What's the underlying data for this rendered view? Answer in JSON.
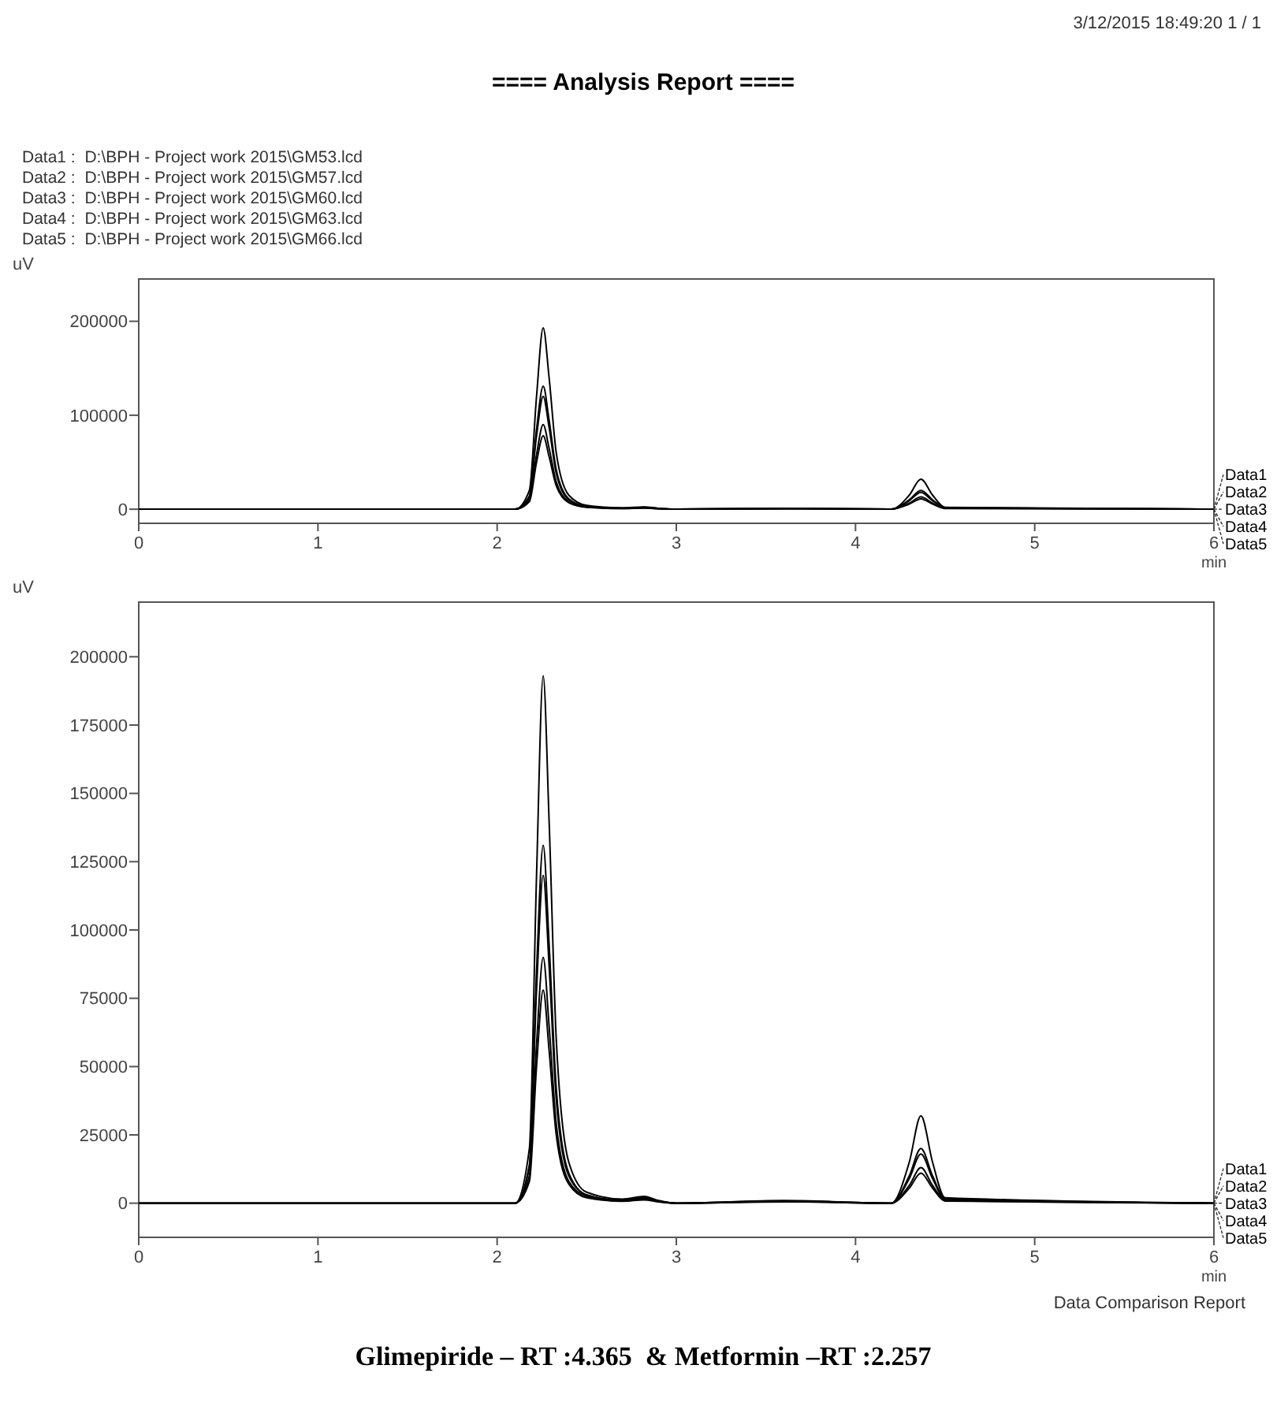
{
  "chart_data": [
    {
      "type": "line",
      "title": "==== Analysis Report ====",
      "annotations": [
        "3/12/2015 18:49:20 1 / 1",
        "Data1 :  D:\\BPH - Project work 2015\\GM53.lcd",
        "Data2 :  D:\\BPH - Project work 2015\\GM57.lcd",
        "Data3 :  D:\\BPH - Project work 2015\\GM60.lcd",
        "Data4 :  D:\\BPH - Project work 2015\\GM63.lcd",
        "Data5 :  D:\\BPH - Project work 2015\\GM66.lcd"
      ],
      "xlabel": "min",
      "ylabel": "uV",
      "xlim": [
        0,
        6
      ],
      "xticks": [
        0,
        1,
        2,
        3,
        4,
        5,
        6
      ],
      "ylim": [
        -15000,
        245000
      ],
      "yticks": [
        0,
        100000,
        200000
      ],
      "line_style": "solid",
      "x": [
        0,
        2.1,
        2.18,
        2.22,
        2.257,
        2.29,
        2.33,
        2.4,
        2.5,
        2.7,
        2.82,
        2.9,
        3.0,
        3.6,
        4.2,
        4.3,
        4.365,
        4.43,
        4.5,
        6
      ],
      "series": [
        {
          "name": "Data1",
          "color": "#000000",
          "values": [
            0,
            0,
            20000,
            120000,
            193000,
            140000,
            60000,
            15000,
            4000,
            1500,
            2500,
            1000,
            0,
            1000,
            0,
            15000,
            32000,
            15000,
            2000,
            0
          ]
        },
        {
          "name": "Data2",
          "color": "#000000",
          "values": [
            0,
            0,
            14000,
            85000,
            131000,
            95000,
            42000,
            11000,
            3000,
            1000,
            2000,
            800,
            0,
            800,
            0,
            10000,
            20000,
            10000,
            1500,
            0
          ]
        },
        {
          "name": "Data3",
          "color": "#000000",
          "values": [
            0,
            0,
            13000,
            78000,
            120000,
            87000,
            38000,
            10000,
            3000,
            1000,
            2000,
            800,
            0,
            800,
            0,
            9000,
            18000,
            9000,
            1500,
            0
          ]
        },
        {
          "name": "Data4",
          "color": "#000000",
          "values": [
            0,
            0,
            10000,
            58000,
            90000,
            65000,
            29000,
            8000,
            2500,
            800,
            1500,
            600,
            0,
            600,
            0,
            6500,
            13000,
            6500,
            1000,
            0
          ]
        },
        {
          "name": "Data5",
          "color": "#000000",
          "values": [
            0,
            0,
            8000,
            50000,
            78000,
            56000,
            25000,
            7000,
            2000,
            700,
            1200,
            500,
            0,
            500,
            0,
            5500,
            11000,
            5500,
            800,
            0
          ]
        }
      ]
    },
    {
      "type": "line",
      "annotations": [
        "Data Comparison Report",
        "Glimepiride – RT :4.365  & Metformin –RT :2.257"
      ],
      "xlabel": "min",
      "ylabel": "uV",
      "xlim": [
        0,
        6
      ],
      "xticks": [
        0,
        1,
        2,
        3,
        4,
        5,
        6
      ],
      "ylim": [
        -12500,
        220000
      ],
      "yticks": [
        0,
        25000,
        50000,
        75000,
        100000,
        125000,
        150000,
        175000,
        200000
      ],
      "line_style": "solid",
      "x": [
        0,
        2.1,
        2.18,
        2.22,
        2.257,
        2.29,
        2.33,
        2.4,
        2.5,
        2.7,
        2.82,
        2.9,
        3.0,
        3.6,
        4.2,
        4.3,
        4.365,
        4.43,
        4.5,
        6
      ],
      "series": [
        {
          "name": "Data1",
          "color": "#000000",
          "values": [
            0,
            0,
            20000,
            120000,
            193000,
            140000,
            60000,
            15000,
            4000,
            1500,
            2500,
            1000,
            0,
            1000,
            0,
            15000,
            32000,
            15000,
            2000,
            0
          ]
        },
        {
          "name": "Data2",
          "color": "#000000",
          "values": [
            0,
            0,
            14000,
            85000,
            131000,
            95000,
            42000,
            11000,
            3000,
            1000,
            2000,
            800,
            0,
            800,
            0,
            10000,
            20000,
            10000,
            1500,
            0
          ]
        },
        {
          "name": "Data3",
          "color": "#000000",
          "values": [
            0,
            0,
            13000,
            78000,
            120000,
            87000,
            38000,
            10000,
            3000,
            1000,
            2000,
            800,
            0,
            800,
            0,
            9000,
            18000,
            9000,
            1500,
            0
          ]
        },
        {
          "name": "Data4",
          "color": "#000000",
          "values": [
            0,
            0,
            10000,
            58000,
            90000,
            65000,
            29000,
            8000,
            2500,
            800,
            1500,
            600,
            0,
            600,
            0,
            6500,
            13000,
            6500,
            1000,
            0
          ]
        },
        {
          "name": "Data5",
          "color": "#000000",
          "values": [
            0,
            0,
            8000,
            50000,
            78000,
            56000,
            25000,
            7000,
            2000,
            700,
            1200,
            500,
            0,
            500,
            0,
            5500,
            11000,
            5500,
            800,
            0
          ]
        }
      ]
    }
  ]
}
